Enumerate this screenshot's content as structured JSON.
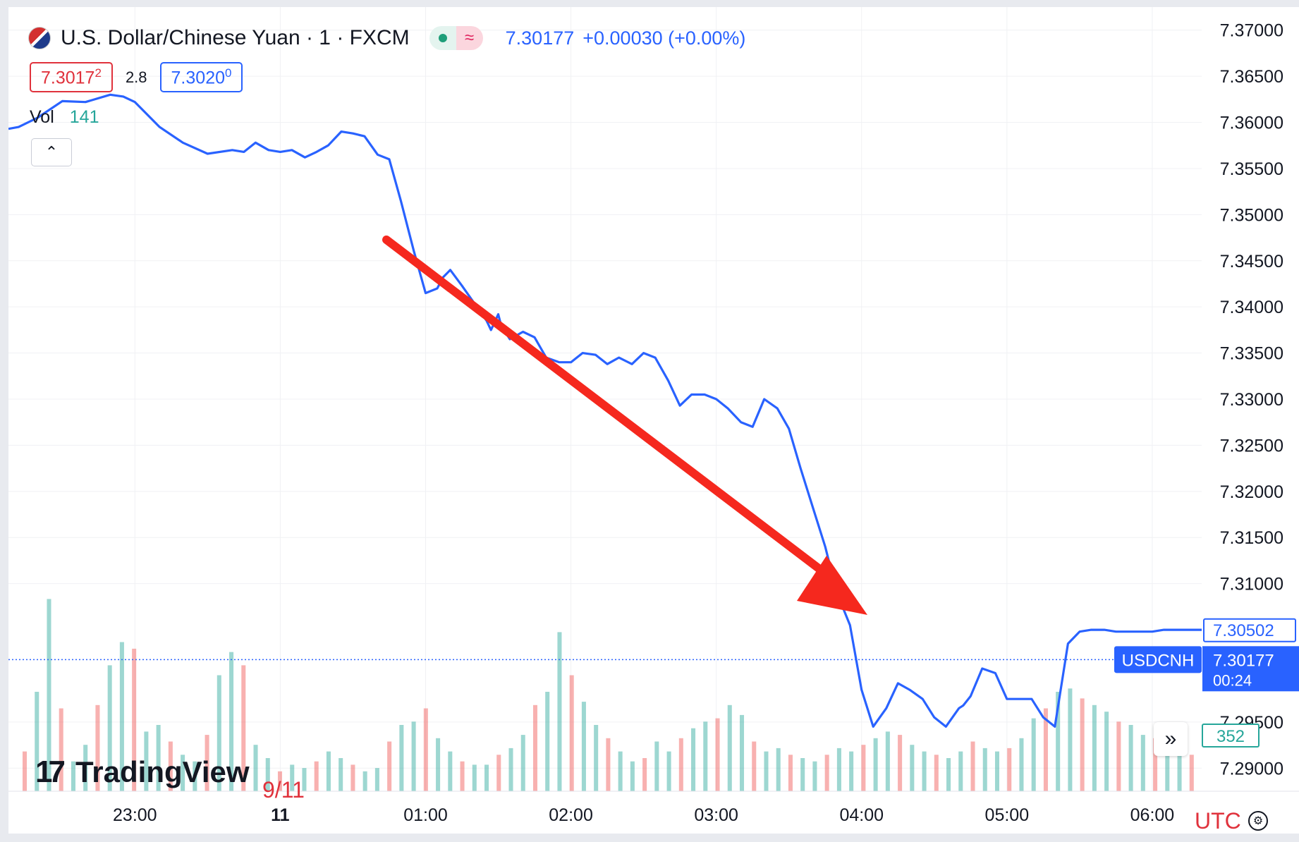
{
  "header": {
    "symbol": "U.S. Dollar/Chinese Yuan · 1 · FXCM",
    "status_glyph": "≈",
    "last_price": "7.30177",
    "change": "+0.00030 (+0.00%)"
  },
  "bidask": {
    "bid_main": "7.3017",
    "bid_sup": "2",
    "spread": "2.8",
    "ask_main": "7.3020",
    "ask_sup": "0"
  },
  "volume": {
    "label": "Vol",
    "value": "141"
  },
  "logo_text": "TradingView",
  "date_note": "9/11",
  "utc_label": "UTC",
  "icons": [
    "flag-icon",
    "status-dot-icon",
    "approx-icon",
    "chevron-up-icon",
    "tradingview-logo-icon",
    "scroll-right-icon",
    "gear-icon"
  ],
  "colors": {
    "line": "#2962ff",
    "up": "#26a69a",
    "down": "#ef5350",
    "arrow": "#f5281e",
    "accent": "#2962ff"
  },
  "chart_data": {
    "type": "line",
    "title": "U.S. Dollar/Chinese Yuan · 1 · FXCM",
    "y_tick_labels": [
      "7.37000",
      "7.36500",
      "7.36000",
      "7.35500",
      "7.35000",
      "7.34500",
      "7.34000",
      "7.33500",
      "7.33000",
      "7.32500",
      "7.32000",
      "7.31500",
      "7.31000",
      "7.29500",
      "7.29000"
    ],
    "ylim": [
      7.2875,
      7.3725
    ],
    "x_tick_labels": [
      "23:00",
      "11",
      "01:00",
      "02:00",
      "03:00",
      "04:00",
      "05:00",
      "06:00"
    ],
    "x_tick_times_h": [
      23,
      24,
      25,
      26,
      27,
      28,
      29,
      30
    ],
    "xlim_h": [
      22.13,
      30.34
    ],
    "series": [
      {
        "x_h": [
          22.13,
          22.2,
          22.33,
          22.5,
          22.66,
          22.83,
          22.92,
          23.0,
          23.17,
          23.33,
          23.5,
          23.67,
          23.75,
          23.83,
          23.92,
          24.0,
          24.08,
          24.17,
          24.25,
          24.33,
          24.42,
          24.5,
          24.58,
          24.67,
          24.75,
          24.83,
          24.92,
          25.0,
          25.08,
          25.12,
          25.17,
          25.25,
          25.33,
          25.42,
          25.45,
          25.48,
          25.5,
          25.52,
          25.58,
          25.67,
          25.75,
          25.83,
          25.92,
          26.0,
          26.08,
          26.17,
          26.25,
          26.33,
          26.42,
          26.5,
          26.58,
          26.67,
          26.75,
          26.83,
          26.92,
          27.0,
          27.08,
          27.17,
          27.25,
          27.33,
          27.42,
          27.5,
          27.58,
          27.67,
          27.75,
          27.83,
          27.92,
          28.0,
          28.08,
          28.17,
          28.25,
          28.33,
          28.42,
          28.5,
          28.58,
          28.67,
          28.7,
          28.75,
          28.83,
          28.92,
          29.0,
          29.08,
          29.17,
          29.25,
          29.33,
          29.42,
          29.5,
          29.58,
          29.67,
          29.75,
          29.83,
          29.92,
          30.0,
          30.08,
          30.17,
          30.25,
          30.34
        ],
        "values": [
          7.3593,
          7.3595,
          7.3605,
          7.3623,
          7.3622,
          7.363,
          7.3628,
          7.3622,
          7.3595,
          7.3578,
          7.3566,
          7.357,
          7.3568,
          7.3578,
          7.357,
          7.3568,
          7.357,
          7.3562,
          7.3568,
          7.3575,
          7.359,
          7.3588,
          7.3585,
          7.3565,
          7.356,
          7.3515,
          7.346,
          7.3415,
          7.342,
          7.3432,
          7.344,
          7.3423,
          7.3405,
          7.3385,
          7.3375,
          7.3385,
          7.3392,
          7.338,
          7.3365,
          7.3373,
          7.3367,
          7.3345,
          7.334,
          7.334,
          7.335,
          7.3348,
          7.3338,
          7.3345,
          7.3338,
          7.335,
          7.3345,
          7.332,
          7.3293,
          7.3305,
          7.3305,
          7.33,
          7.329,
          7.3275,
          7.327,
          7.33,
          7.329,
          7.3268,
          7.3225,
          7.318,
          7.314,
          7.309,
          7.3055,
          7.2985,
          7.2945,
          7.2965,
          7.2992,
          7.2985,
          7.2975,
          7.2955,
          7.2945,
          7.2965,
          7.2968,
          7.2978,
          7.3008,
          7.3003,
          7.2975,
          7.2975,
          7.2975,
          7.2955,
          7.2945,
          7.3035,
          7.3048,
          7.305,
          7.305,
          7.3048,
          7.3048,
          7.3048,
          7.3048,
          7.305,
          7.305,
          7.305,
          7.305
        ]
      }
    ],
    "current_price": 7.30177,
    "current_price_label": "7.30177",
    "current_symbol_label": "USDCNH",
    "countdown": "00:24",
    "prev_price_label": "7.30502",
    "volume_label": "352",
    "volume_scale_max": 600,
    "volume_series": [
      120,
      300,
      580,
      250,
      90,
      140,
      260,
      380,
      450,
      430,
      180,
      200,
      150,
      110,
      90,
      170,
      350,
      420,
      380,
      140,
      100,
      60,
      80,
      70,
      90,
      120,
      100,
      80,
      60,
      70,
      150,
      200,
      210,
      250,
      160,
      120,
      90,
      80,
      80,
      110,
      130,
      170,
      260,
      300,
      480,
      350,
      270,
      200,
      160,
      120,
      90,
      100,
      150,
      120,
      160,
      190,
      210,
      220,
      260,
      230,
      150,
      120,
      130,
      110,
      100,
      90,
      110,
      130,
      120,
      140,
      160,
      180,
      170,
      140,
      120,
      110,
      100,
      120,
      150,
      130,
      120,
      130,
      160,
      220,
      250,
      300,
      310,
      280,
      260,
      240,
      210,
      200,
      170,
      160,
      140,
      120,
      110
    ]
  }
}
